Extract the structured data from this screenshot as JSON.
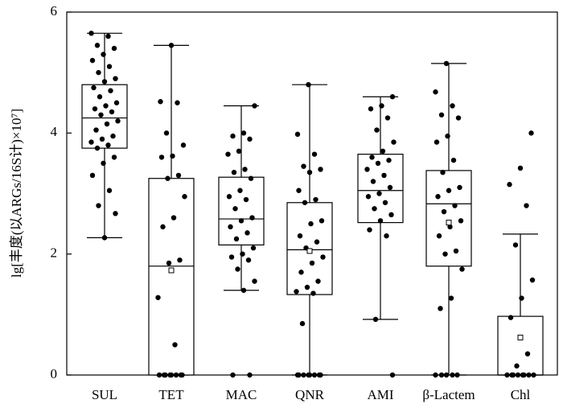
{
  "chart_data": {
    "type": "box",
    "ylabel": "lg[丰度(以ARGs/16S计)×10⁷]",
    "ylim": [
      0,
      6
    ],
    "yticks": [
      0,
      2,
      4,
      6
    ],
    "color": "#000000",
    "categories": [
      "SUL",
      "TET",
      "MAC",
      "QNR",
      "AMI",
      "β-Lactem",
      "Chl"
    ],
    "boxes": [
      {
        "min": 2.27,
        "q1": 3.75,
        "median": 4.25,
        "q3": 4.8,
        "max": 5.65,
        "points": [
          5.65,
          5.6,
          5.45,
          5.4,
          5.3,
          5.2,
          5.1,
          5.0,
          4.9,
          4.85,
          4.75,
          4.7,
          4.6,
          4.5,
          4.45,
          4.4,
          4.35,
          4.3,
          4.2,
          4.15,
          4.05,
          3.95,
          3.9,
          3.85,
          3.8,
          3.75,
          3.6,
          3.5,
          3.3,
          3.05,
          2.8,
          2.67,
          2.27
        ]
      },
      {
        "min": 0,
        "q1": 0,
        "median": 1.8,
        "q3": 3.25,
        "max": 5.45,
        "mean": 1.73,
        "points": [
          5.45,
          4.52,
          4.5,
          4.0,
          3.8,
          3.62,
          3.6,
          3.3,
          3.25,
          2.95,
          2.6,
          2.45,
          1.9,
          1.85,
          1.28,
          0.5,
          0,
          0,
          0,
          0,
          0,
          0,
          0,
          0
        ]
      },
      {
        "min": 1.4,
        "q1": 2.15,
        "median": 2.58,
        "q3": 3.27,
        "max": 4.45,
        "points": [
          4.45,
          4.0,
          3.95,
          3.9,
          3.7,
          3.65,
          3.4,
          3.35,
          3.25,
          3.05,
          2.95,
          2.9,
          2.75,
          2.6,
          2.55,
          2.45,
          2.35,
          2.25,
          2.1,
          2.0,
          1.95,
          1.9,
          1.75,
          1.55,
          1.4,
          0,
          0
        ]
      },
      {
        "min": 0,
        "q1": 1.33,
        "median": 2.07,
        "q3": 2.85,
        "max": 4.8,
        "mean": 2.05,
        "points": [
          4.8,
          3.98,
          3.65,
          3.45,
          3.4,
          3.35,
          3.05,
          2.9,
          2.85,
          2.55,
          2.5,
          2.3,
          2.2,
          2.1,
          1.95,
          1.85,
          1.7,
          1.55,
          1.45,
          1.38,
          1.35,
          0.85,
          0,
          0,
          0,
          0,
          0,
          0,
          0,
          0
        ]
      },
      {
        "min": 0.92,
        "q1": 2.52,
        "median": 3.05,
        "q3": 3.65,
        "max": 4.6,
        "points": [
          4.6,
          4.45,
          4.4,
          4.25,
          4.05,
          3.85,
          3.7,
          3.6,
          3.55,
          3.5,
          3.4,
          3.3,
          3.2,
          3.1,
          3.0,
          2.95,
          2.85,
          2.75,
          2.65,
          2.55,
          2.4,
          2.3,
          0.92,
          0
        ]
      },
      {
        "min": 0,
        "q1": 1.8,
        "median": 2.83,
        "q3": 3.38,
        "max": 5.15,
        "mean": 2.52,
        "points": [
          5.15,
          4.68,
          4.45,
          4.3,
          4.25,
          3.95,
          3.85,
          3.55,
          3.35,
          3.1,
          3.05,
          2.95,
          2.8,
          2.7,
          2.55,
          2.45,
          2.3,
          2.05,
          2.0,
          1.75,
          1.27,
          1.1,
          0,
          0,
          0,
          0,
          0
        ]
      },
      {
        "min": 0,
        "q1": 0,
        "median": 0,
        "q3": 0.97,
        "max": 2.33,
        "mean": 0.62,
        "points": [
          4.0,
          3.42,
          3.15,
          2.8,
          2.15,
          1.57,
          1.27,
          0.95,
          0.35,
          0.15,
          0,
          0,
          0,
          0,
          0,
          0,
          0,
          0
        ]
      }
    ]
  }
}
